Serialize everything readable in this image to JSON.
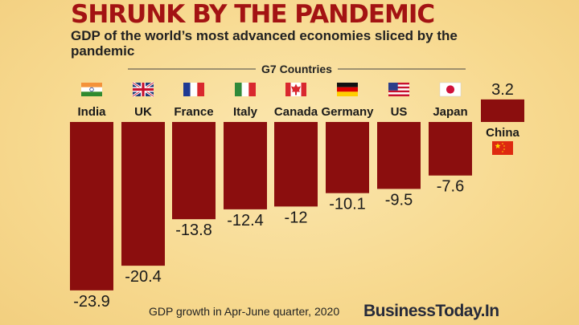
{
  "headline": "SHRUNK BY THE PANDEMIC",
  "subtitle": "GDP of the world’s most advanced economies sliced by the pandemic",
  "footer_note": "GDP growth in Apr-June quarter, 2020",
  "brand": "BusinessToday.In",
  "colors": {
    "bar": "#8b0e0e",
    "headline": "#a31313"
  },
  "chart_data": {
    "type": "bar",
    "title": "SHRUNK BY THE PANDEMIC",
    "subtitle": "GDP of the world’s most advanced economies sliced by the pandemic",
    "xlabel": "",
    "ylabel": "",
    "group_label": "G7 Countries",
    "categories": [
      "India",
      "UK",
      "France",
      "Italy",
      "Canada",
      "Germany",
      "US",
      "Japan",
      "China"
    ],
    "values": [
      -23.9,
      -20.4,
      -13.8,
      -12.4,
      -12,
      -10.1,
      -9.5,
      -7.6,
      3.2
    ],
    "labels": [
      "-23.9",
      "-20.4",
      "-13.8",
      "-12.4",
      "-12",
      "-10.1",
      "-9.5",
      "-7.6",
      "3.2"
    ],
    "flags": [
      "india-flag",
      "uk-flag",
      "france-flag",
      "italy-flag",
      "canada-flag",
      "germany-flag",
      "us-flag",
      "japan-flag",
      "china-flag"
    ],
    "ylim": [
      -23.9,
      3.2
    ],
    "grid": false,
    "legend": "none"
  }
}
